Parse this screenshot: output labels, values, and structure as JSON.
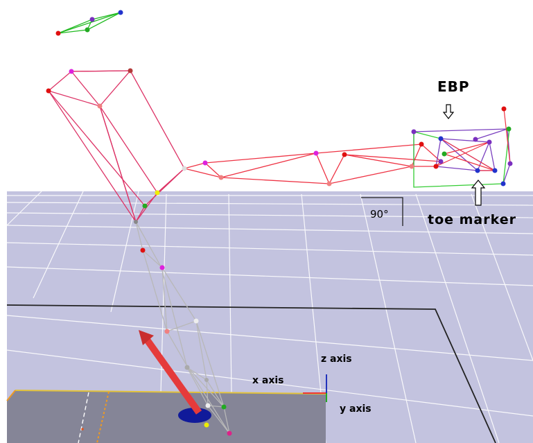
{
  "labels": {
    "ebp": "EBP",
    "toe_marker": "toe marker",
    "angle": "90°",
    "z_axis": "z axis",
    "x_axis": "x axis",
    "y_axis": "y axis"
  },
  "colors": {
    "sky": "#ffffff",
    "floor": "#c3c3df",
    "force_plate": "#858597",
    "force_vector": "#e53b3b",
    "cop_disc": "#101a9a",
    "segment_thigh": "#dd3366",
    "segment_shank": "#ee3344",
    "segment_foot": "#7a3fbf",
    "segment_head": "#22bb22",
    "segment_trunk": "#b8b8b8",
    "foot_box": "#33cc33"
  }
}
